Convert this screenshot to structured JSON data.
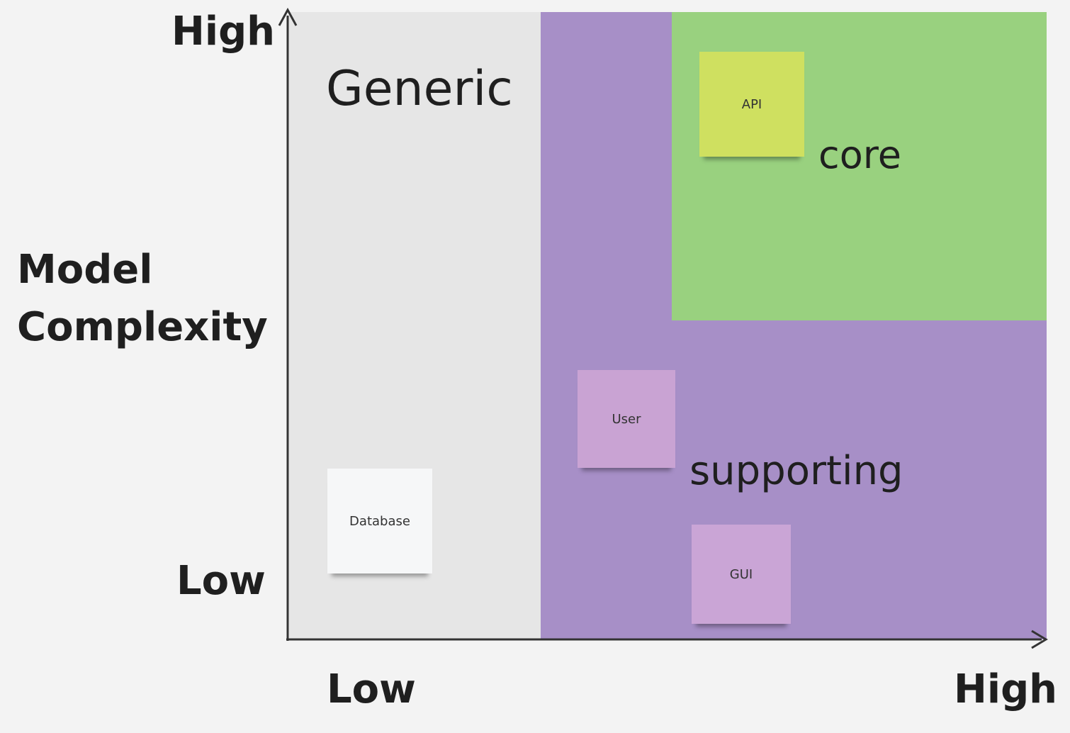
{
  "regions": {
    "generic": {
      "label": "Generic",
      "color": "#e6e6e6"
    },
    "supporting": {
      "label": "supporting",
      "color": "#a78fc7"
    },
    "core": {
      "label": "core",
      "color": "#99d17f"
    }
  },
  "axes": {
    "y": {
      "title": "Model Complexity",
      "high": "High",
      "low": "Low"
    },
    "x": {
      "low": "Low",
      "high": "High"
    },
    "color": "#333333"
  },
  "stickies": [
    {
      "text": "API",
      "color": "#cfe060",
      "region": "core"
    },
    {
      "text": "User",
      "color": "#c9a3d3",
      "region": "supporting"
    },
    {
      "text": "GUI",
      "color": "#caa5d6",
      "region": "supporting"
    },
    {
      "text": "Database",
      "color": "#f6f7f8",
      "region": "generic"
    }
  ]
}
